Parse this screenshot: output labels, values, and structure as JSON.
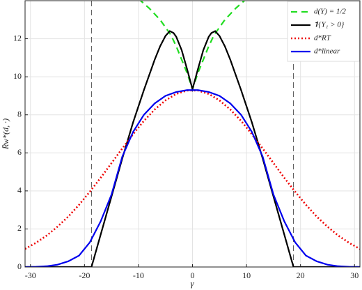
{
  "chart_data": {
    "type": "line",
    "x_label": "γ",
    "y_label": "R̄w*(d, ·)",
    "xlim": [
      -31,
      31
    ],
    "ylim": [
      0,
      14
    ],
    "xticks": [
      -30,
      -20,
      -10,
      0,
      10,
      20,
      30
    ],
    "yticks": [
      0,
      2,
      4,
      6,
      8,
      10,
      12
    ],
    "grid": true,
    "legend": "top-right",
    "reference_lines": [
      -18.7,
      18.7
    ],
    "series": [
      {
        "name": "d(Y) = 1/2",
        "color": "#22dd22",
        "style": "dashed",
        "x": [
          -10,
          -9,
          -8,
          -7,
          -6,
          -5,
          -4,
          -3,
          -2,
          -1,
          0,
          1,
          2,
          3,
          4,
          5,
          6,
          7,
          8,
          9,
          10
        ],
        "values": [
          14.1,
          13.85,
          13.6,
          13.3,
          13.0,
          12.6,
          12.2,
          11.6,
          10.9,
          10.2,
          9.35,
          10.2,
          10.9,
          11.6,
          12.2,
          12.6,
          13.0,
          13.3,
          13.6,
          13.85,
          14.1
        ]
      },
      {
        "name": "𝟏{Y₁ > 0}",
        "color": "#000000",
        "style": "solid",
        "x": [
          -31,
          -18.7,
          -17,
          -15,
          -13,
          -11,
          -9,
          -7,
          -6,
          -5,
          -4.2,
          -3.5,
          -3,
          -2,
          -1,
          0,
          1,
          2,
          3,
          3.5,
          4.2,
          5,
          6,
          7,
          9,
          11,
          13,
          15,
          17,
          18.7,
          31
        ],
        "values": [
          0,
          0,
          1.7,
          3.7,
          5.7,
          7.6,
          9.3,
          10.9,
          11.6,
          12.15,
          12.4,
          12.3,
          12.1,
          11.4,
          10.4,
          9.35,
          10.4,
          11.4,
          12.1,
          12.3,
          12.4,
          12.15,
          11.6,
          10.9,
          9.3,
          7.6,
          5.7,
          3.7,
          1.7,
          0,
          0
        ]
      },
      {
        "name": "d*RT",
        "color": "#ee0000",
        "style": "dotted",
        "x": [
          -31,
          -29,
          -27,
          -25,
          -23,
          -21,
          -19,
          -17,
          -15,
          -13,
          -11,
          -9,
          -7,
          -5,
          -3,
          -1,
          1,
          3,
          5,
          7,
          9,
          11,
          13,
          15,
          17,
          19,
          21,
          23,
          25,
          27,
          29,
          31
        ],
        "values": [
          0.95,
          1.27,
          1.65,
          2.12,
          2.65,
          3.27,
          3.96,
          4.69,
          5.46,
          6.23,
          6.98,
          7.68,
          8.28,
          8.76,
          9.1,
          9.28,
          9.28,
          9.1,
          8.76,
          8.28,
          7.68,
          6.98,
          6.23,
          5.46,
          4.69,
          3.96,
          3.27,
          2.65,
          2.12,
          1.65,
          1.27,
          0.95
        ]
      },
      {
        "name": "d*linear",
        "color": "#0000ee",
        "style": "solid",
        "x": [
          -31,
          -29,
          -27,
          -25,
          -23,
          -21,
          -19,
          -17,
          -15,
          -13,
          -11,
          -9,
          -7,
          -5,
          -3,
          -1,
          1,
          3,
          5,
          7,
          9,
          11,
          13,
          15,
          17,
          19,
          21,
          23,
          25,
          27,
          29,
          31
        ],
        "values": [
          0,
          0.01,
          0.04,
          0.12,
          0.3,
          0.6,
          1.3,
          2.4,
          3.8,
          5.8,
          7.1,
          8.0,
          8.6,
          9.0,
          9.2,
          9.3,
          9.3,
          9.2,
          9.0,
          8.6,
          8.0,
          7.1,
          5.8,
          3.8,
          2.4,
          1.3,
          0.6,
          0.3,
          0.12,
          0.04,
          0.01,
          0
        ]
      }
    ]
  }
}
